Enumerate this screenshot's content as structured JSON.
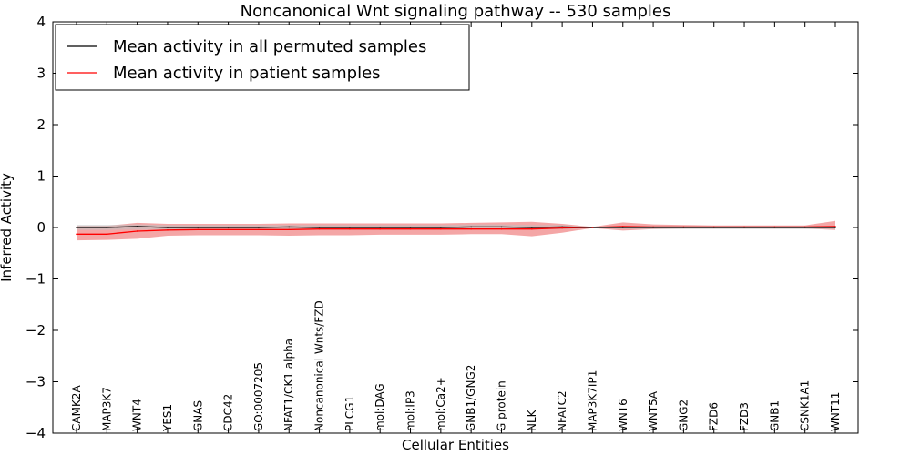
{
  "chart_data": {
    "type": "line",
    "title": "Noncanonical Wnt signaling pathway -- 530 samples",
    "xlabel": "Cellular Entities",
    "ylabel": "Inferred Activity",
    "ylim": [
      -4,
      4
    ],
    "yticks": [
      -4,
      -3,
      -2,
      -1,
      0,
      1,
      2,
      3,
      4
    ],
    "ytick_labels": [
      "−4",
      "−3",
      "−2",
      "−1",
      "0",
      "1",
      "2",
      "3",
      "4"
    ],
    "categories": [
      "CAMK2A",
      "MAP3K7",
      "WNT4",
      "YES1",
      "GNAS",
      "CDC42",
      "GO:0007205",
      "NFAT1/CK1 alpha",
      "Noncanonical Wnts/FZD",
      "PLCG1",
      "mol:DAG",
      "mol:IP3",
      "mol:Ca2+",
      "GNB1/GNG2",
      "G protein",
      "NLK",
      "NFATC2",
      "MAP3K7IP1",
      "WNT6",
      "WNT5A",
      "GNG2",
      "FZD6",
      "FZD3",
      "GNB1",
      "CSNK1A1",
      "WNT11"
    ],
    "legend_position": "top-left",
    "series": [
      {
        "name": "Mean activity in all permuted samples",
        "color": "#000000",
        "band_color": "#bfbfbf",
        "values": [
          0.0,
          0.0,
          0.02,
          0.0,
          0.0,
          0.0,
          0.0,
          0.01,
          0.0,
          0.0,
          0.0,
          0.0,
          0.0,
          0.01,
          0.01,
          0.0,
          0.01,
          0.0,
          0.0,
          0.0,
          0.0,
          0.0,
          0.0,
          0.0,
          0.0,
          0.0
        ],
        "lower": [
          -0.05,
          -0.05,
          -0.04,
          -0.04,
          -0.04,
          -0.04,
          -0.04,
          -0.04,
          -0.04,
          -0.04,
          -0.04,
          -0.04,
          -0.04,
          -0.04,
          -0.04,
          -0.04,
          -0.03,
          -0.01,
          -0.03,
          -0.03,
          -0.03,
          -0.03,
          -0.03,
          -0.03,
          -0.03,
          -0.03
        ],
        "upper": [
          0.05,
          0.05,
          0.06,
          0.05,
          0.05,
          0.05,
          0.05,
          0.05,
          0.05,
          0.05,
          0.05,
          0.05,
          0.05,
          0.06,
          0.06,
          0.05,
          0.05,
          0.01,
          0.03,
          0.03,
          0.03,
          0.03,
          0.03,
          0.03,
          0.03,
          0.03
        ]
      },
      {
        "name": "Mean activity in patient samples",
        "color": "#ff0000",
        "band_color": "#f08080",
        "values": [
          -0.13,
          -0.13,
          -0.07,
          -0.05,
          -0.04,
          -0.04,
          -0.04,
          -0.04,
          -0.03,
          -0.03,
          -0.03,
          -0.03,
          -0.03,
          -0.03,
          -0.03,
          -0.03,
          -0.01,
          0.0,
          0.02,
          0.01,
          0.01,
          0.01,
          0.01,
          0.01,
          0.01,
          0.02
        ],
        "lower": [
          -0.25,
          -0.24,
          -0.22,
          -0.16,
          -0.15,
          -0.15,
          -0.15,
          -0.16,
          -0.15,
          -0.15,
          -0.14,
          -0.14,
          -0.14,
          -0.13,
          -0.13,
          -0.17,
          -0.1,
          -0.01,
          -0.06,
          -0.03,
          -0.02,
          -0.02,
          -0.02,
          -0.02,
          -0.02,
          -0.05
        ],
        "upper": [
          0.03,
          0.03,
          0.09,
          0.07,
          0.07,
          0.07,
          0.07,
          0.08,
          0.08,
          0.08,
          0.08,
          0.08,
          0.08,
          0.09,
          0.1,
          0.11,
          0.07,
          0.01,
          0.1,
          0.06,
          0.05,
          0.04,
          0.04,
          0.04,
          0.04,
          0.13
        ]
      }
    ]
  }
}
